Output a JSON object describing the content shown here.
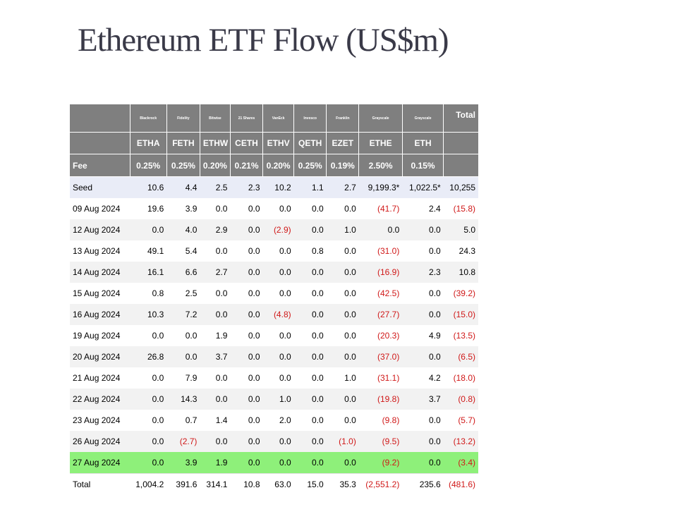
{
  "title": "Ethereum ETF Flow (US$m)",
  "issuers": [
    "Blackrock",
    "Fidelity",
    "Bitwise",
    "21 Shares",
    "VanEck",
    "Invesco",
    "Franklin",
    "Grayscale",
    "Grayscale"
  ],
  "total_header": "Total",
  "tickers": [
    "ETHA",
    "FETH",
    "ETHW",
    "CETH",
    "ETHV",
    "QETH",
    "EZET",
    "ETHE",
    "ETH"
  ],
  "fee_label": "Fee",
  "fees": [
    "0.25%",
    "0.25%",
    "0.20%",
    "0.21%",
    "0.20%",
    "0.25%",
    "0.19%",
    "2.50%",
    "0.15%"
  ],
  "rows": [
    {
      "label": "Seed",
      "values": [
        "10.6",
        "4.4",
        "2.5",
        "2.3",
        "10.2",
        "1.1",
        "2.7",
        "9,199.3*",
        "1,022.5*",
        "10,255"
      ]
    },
    {
      "label": "09 Aug 2024",
      "values": [
        "19.6",
        "3.9",
        "0.0",
        "0.0",
        "0.0",
        "0.0",
        "0.0",
        "(41.7)",
        "2.4",
        "(15.8)"
      ]
    },
    {
      "label": "12 Aug 2024",
      "values": [
        "0.0",
        "4.0",
        "2.9",
        "0.0",
        "(2.9)",
        "0.0",
        "1.0",
        "0.0",
        "0.0",
        "5.0"
      ]
    },
    {
      "label": "13 Aug 2024",
      "values": [
        "49.1",
        "5.4",
        "0.0",
        "0.0",
        "0.0",
        "0.8",
        "0.0",
        "(31.0)",
        "0.0",
        "24.3"
      ]
    },
    {
      "label": "14 Aug 2024",
      "values": [
        "16.1",
        "6.6",
        "2.7",
        "0.0",
        "0.0",
        "0.0",
        "0.0",
        "(16.9)",
        "2.3",
        "10.8"
      ]
    },
    {
      "label": "15 Aug 2024",
      "values": [
        "0.8",
        "2.5",
        "0.0",
        "0.0",
        "0.0",
        "0.0",
        "0.0",
        "(42.5)",
        "0.0",
        "(39.2)"
      ]
    },
    {
      "label": "16 Aug 2024",
      "values": [
        "10.3",
        "7.2",
        "0.0",
        "0.0",
        "(4.8)",
        "0.0",
        "0.0",
        "(27.7)",
        "0.0",
        "(15.0)"
      ]
    },
    {
      "label": "19 Aug 2024",
      "values": [
        "0.0",
        "0.0",
        "1.9",
        "0.0",
        "0.0",
        "0.0",
        "0.0",
        "(20.3)",
        "4.9",
        "(13.5)"
      ]
    },
    {
      "label": "20 Aug 2024",
      "values": [
        "26.8",
        "0.0",
        "3.7",
        "0.0",
        "0.0",
        "0.0",
        "0.0",
        "(37.0)",
        "0.0",
        "(6.5)"
      ]
    },
    {
      "label": "21 Aug 2024",
      "values": [
        "0.0",
        "7.9",
        "0.0",
        "0.0",
        "0.0",
        "0.0",
        "1.0",
        "(31.1)",
        "4.2",
        "(18.0)"
      ]
    },
    {
      "label": "22 Aug 2024",
      "values": [
        "0.0",
        "14.3",
        "0.0",
        "0.0",
        "1.0",
        "0.0",
        "0.0",
        "(19.8)",
        "3.7",
        "(0.8)"
      ]
    },
    {
      "label": "23 Aug 2024",
      "values": [
        "0.0",
        "0.7",
        "1.4",
        "0.0",
        "2.0",
        "0.0",
        "0.0",
        "(9.8)",
        "0.0",
        "(5.7)"
      ]
    },
    {
      "label": "26 Aug 2024",
      "values": [
        "0.0",
        "(2.7)",
        "0.0",
        "0.0",
        "0.0",
        "0.0",
        "(1.0)",
        "(9.5)",
        "0.0",
        "(13.2)"
      ]
    },
    {
      "label": "27 Aug 2024",
      "values": [
        "0.0",
        "3.9",
        "1.9",
        "0.0",
        "0.0",
        "0.0",
        "0.0",
        "(9.2)",
        "0.0",
        "(3.4)"
      ]
    },
    {
      "label": "Total",
      "values": [
        "1,004.2",
        "391.6",
        "314.1",
        "10.8",
        "63.0",
        "15.0",
        "35.3",
        "(2,551.2)",
        "235.6",
        "(481.6)"
      ]
    }
  ],
  "colors": {
    "header": "#7f7f7f",
    "negative": "#d01818",
    "highlight": "#8ef07a",
    "seed": "#e9ecf7"
  }
}
